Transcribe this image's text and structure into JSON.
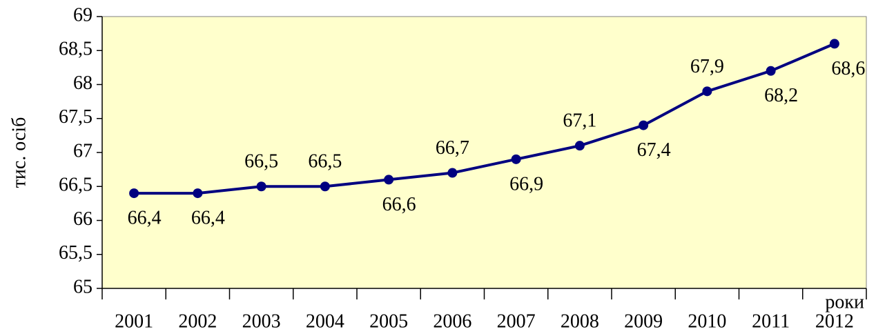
{
  "chart_data": {
    "type": "line",
    "y_label": "тис. осіб",
    "x_label": "роки",
    "categories": [
      "2001",
      "2002",
      "2003",
      "2004",
      "2005",
      "2006",
      "2007",
      "2008",
      "2009",
      "2010",
      "2011",
      "2012"
    ],
    "series": [
      {
        "name": "тис. осіб",
        "color": "#000080",
        "values": [
          66.4,
          66.4,
          66.5,
          66.5,
          66.6,
          66.7,
          66.9,
          67.1,
          67.4,
          67.9,
          68.2,
          68.6
        ],
        "value_labels": [
          "66,4",
          "66,4",
          "66,5",
          "66,5",
          "66,6",
          "66,7",
          "66,9",
          "67,1",
          "67,4",
          "67,9",
          "68,2",
          "68,6"
        ]
      }
    ],
    "ylim": [
      65,
      69
    ],
    "yticks": [
      65,
      {
        "value": 65.5,
        "label": "65,5"
      },
      66,
      {
        "value": 66.5,
        "label": "66,5"
      },
      67,
      {
        "value": 67.5,
        "label": "67,5"
      },
      68,
      {
        "value": 68.5,
        "label": "68,5"
      },
      69
    ],
    "background": "#ffffcc"
  }
}
